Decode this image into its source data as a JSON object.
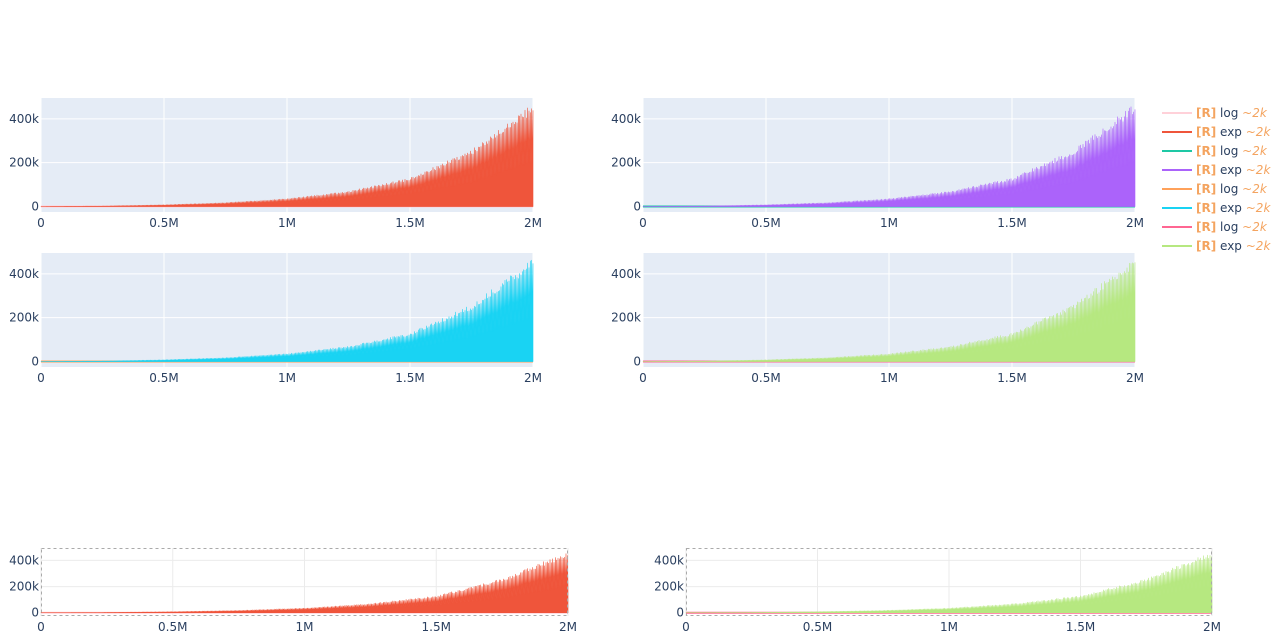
{
  "chart_data": [
    {
      "type": "area",
      "panel": "top-left",
      "x_tick_labels": [
        "0",
        "0.5M",
        "1M",
        "1.5M",
        "2M"
      ],
      "x_ticks": [
        0,
        500000,
        1000000,
        1500000,
        2000000
      ],
      "y_tick_labels": [
        "0",
        "200k",
        "400k"
      ],
      "y_ticks": [
        0,
        200000,
        400000
      ],
      "xlim": [
        0,
        2000000
      ],
      "ylim": [
        -25000,
        495000
      ],
      "grid": true,
      "series": [
        {
          "kind": "log",
          "color": "#ffd1d9",
          "x": [
            0,
            2000000
          ],
          "y": [
            0,
            0
          ]
        },
        {
          "kind": "exp",
          "color": "#ef553b",
          "x": [
            0,
            250000,
            500000,
            750000,
            1000000,
            1250000,
            1500000,
            1750000,
            2000000
          ],
          "y_upper": [
            0,
            2000,
            8000,
            18000,
            36000,
            70000,
            130000,
            260000,
            470000
          ],
          "y_lower": [
            0,
            1000,
            3000,
            7000,
            15000,
            28000,
            55000,
            105000,
            195000
          ]
        }
      ]
    },
    {
      "type": "area",
      "panel": "top-right",
      "x_tick_labels": [
        "0",
        "0.5M",
        "1M",
        "1.5M",
        "2M"
      ],
      "x_ticks": [
        0,
        500000,
        1000000,
        1500000,
        2000000
      ],
      "y_tick_labels": [
        "0",
        "200k",
        "400k"
      ],
      "y_ticks": [
        0,
        200000,
        400000
      ],
      "xlim": [
        0,
        2000000
      ],
      "ylim": [
        -25000,
        495000
      ],
      "grid": true,
      "series": [
        {
          "kind": "log",
          "color": "#1ec8a5",
          "x": [
            0,
            2000000
          ],
          "y": [
            0,
            0
          ]
        },
        {
          "kind": "exp",
          "color": "#ab63fa",
          "x": [
            0,
            250000,
            500000,
            750000,
            1000000,
            1250000,
            1500000,
            1750000,
            2000000
          ],
          "y_upper": [
            0,
            2000,
            8000,
            18000,
            36000,
            70000,
            130000,
            260000,
            470000
          ],
          "y_lower": [
            0,
            1000,
            3000,
            7000,
            15000,
            28000,
            55000,
            105000,
            195000
          ]
        }
      ]
    },
    {
      "type": "area",
      "panel": "middle-left",
      "x_tick_labels": [
        "0",
        "0.5M",
        "1M",
        "1.5M",
        "2M"
      ],
      "x_ticks": [
        0,
        500000,
        1000000,
        1500000,
        2000000
      ],
      "y_tick_labels": [
        "0",
        "200k",
        "400k"
      ],
      "y_ticks": [
        0,
        200000,
        400000
      ],
      "xlim": [
        0,
        2000000
      ],
      "ylim": [
        -25000,
        495000
      ],
      "grid": true,
      "series": [
        {
          "kind": "log",
          "color": "#ffa15a",
          "x": [
            0,
            2000000
          ],
          "y": [
            0,
            0
          ]
        },
        {
          "kind": "exp",
          "color": "#19d3f3",
          "x": [
            0,
            250000,
            500000,
            750000,
            1000000,
            1250000,
            1500000,
            1750000,
            2000000
          ],
          "y_upper": [
            0,
            2000,
            8000,
            18000,
            36000,
            70000,
            130000,
            260000,
            470000
          ],
          "y_lower": [
            0,
            1000,
            3000,
            7000,
            15000,
            28000,
            55000,
            105000,
            195000
          ]
        }
      ]
    },
    {
      "type": "area",
      "panel": "middle-right",
      "x_tick_labels": [
        "0",
        "0.5M",
        "1M",
        "1.5M",
        "2M"
      ],
      "x_ticks": [
        0,
        500000,
        1000000,
        1500000,
        2000000
      ],
      "y_tick_labels": [
        "0",
        "200k",
        "400k"
      ],
      "y_ticks": [
        0,
        200000,
        400000
      ],
      "xlim": [
        0,
        2000000
      ],
      "ylim": [
        -25000,
        495000
      ],
      "grid": true,
      "series": [
        {
          "kind": "log",
          "color": "#ff6692",
          "x": [
            0,
            2000000
          ],
          "y": [
            0,
            0
          ]
        },
        {
          "kind": "exp",
          "color": "#b6e880",
          "x": [
            0,
            250000,
            500000,
            750000,
            1000000,
            1250000,
            1500000,
            1750000,
            2000000
          ],
          "y_upper": [
            0,
            2000,
            8000,
            18000,
            36000,
            70000,
            130000,
            260000,
            470000
          ],
          "y_lower": [
            0,
            1000,
            3000,
            7000,
            15000,
            28000,
            55000,
            105000,
            195000
          ]
        }
      ]
    },
    {
      "type": "area",
      "panel": "overview-left",
      "x_tick_labels": [
        "0",
        "0.5M",
        "1M",
        "1.5M",
        "2M"
      ],
      "x_ticks": [
        0,
        500000,
        1000000,
        1500000,
        2000000
      ],
      "y_tick_labels": [
        "0",
        "200k",
        "400k"
      ],
      "y_ticks": [
        0,
        200000,
        400000
      ],
      "xlim": [
        0,
        2000000
      ],
      "ylim": [
        -25000,
        495000
      ],
      "grid": true,
      "series": [
        {
          "kind": "log",
          "color": "#ffd1d9",
          "x": [
            0,
            2000000
          ],
          "y": [
            0,
            0
          ]
        },
        {
          "kind": "exp",
          "color": "#ef553b",
          "x": [
            0,
            250000,
            500000,
            750000,
            1000000,
            1250000,
            1500000,
            1750000,
            2000000
          ],
          "y_upper": [
            0,
            2000,
            8000,
            18000,
            36000,
            70000,
            130000,
            260000,
            470000
          ],
          "y_lower": [
            0,
            1000,
            3000,
            7000,
            15000,
            28000,
            55000,
            105000,
            195000
          ]
        }
      ]
    },
    {
      "type": "area",
      "panel": "overview-right",
      "x_tick_labels": [
        "0",
        "0.5M",
        "1M",
        "1.5M",
        "2M"
      ],
      "x_ticks": [
        0,
        500000,
        1000000,
        1500000,
        2000000
      ],
      "y_tick_labels": [
        "0",
        "200k",
        "400k"
      ],
      "y_ticks": [
        0,
        200000,
        400000
      ],
      "xlim": [
        0,
        2000000
      ],
      "ylim": [
        -25000,
        495000
      ],
      "grid": true,
      "series": [
        {
          "kind": "log",
          "color": "#ff6692",
          "x": [
            0,
            2000000
          ],
          "y": [
            0,
            0
          ]
        },
        {
          "kind": "exp",
          "color": "#b6e880",
          "x": [
            0,
            250000,
            500000,
            750000,
            1000000,
            1250000,
            1500000,
            1750000,
            2000000
          ],
          "y_upper": [
            0,
            2000,
            8000,
            18000,
            36000,
            70000,
            130000,
            260000,
            470000
          ],
          "y_lower": [
            0,
            1000,
            3000,
            7000,
            15000,
            28000,
            55000,
            105000,
            195000
          ]
        }
      ]
    }
  ],
  "legend": {
    "placement": "top-right",
    "prefix_color": "#f4a460",
    "items": [
      {
        "prefix": "[R]",
        "label": "log",
        "suffix": "~2k",
        "color": "#ffd1d9"
      },
      {
        "prefix": "[R]",
        "label": "exp",
        "suffix": "~2k",
        "color": "#ef553b"
      },
      {
        "prefix": "[R]",
        "label": "log",
        "suffix": "~2k",
        "color": "#1ec8a5"
      },
      {
        "prefix": "[R]",
        "label": "exp",
        "suffix": "~2k",
        "color": "#ab63fa"
      },
      {
        "prefix": "[R]",
        "label": "log",
        "suffix": "~2k",
        "color": "#ffa15a"
      },
      {
        "prefix": "[R]",
        "label": "exp",
        "suffix": "~2k",
        "color": "#19d3f3"
      },
      {
        "prefix": "[R]",
        "label": "log",
        "suffix": "~2k",
        "color": "#ff6692"
      },
      {
        "prefix": "[R]",
        "label": "exp",
        "suffix": "~2k",
        "color": "#b6e880"
      }
    ]
  }
}
